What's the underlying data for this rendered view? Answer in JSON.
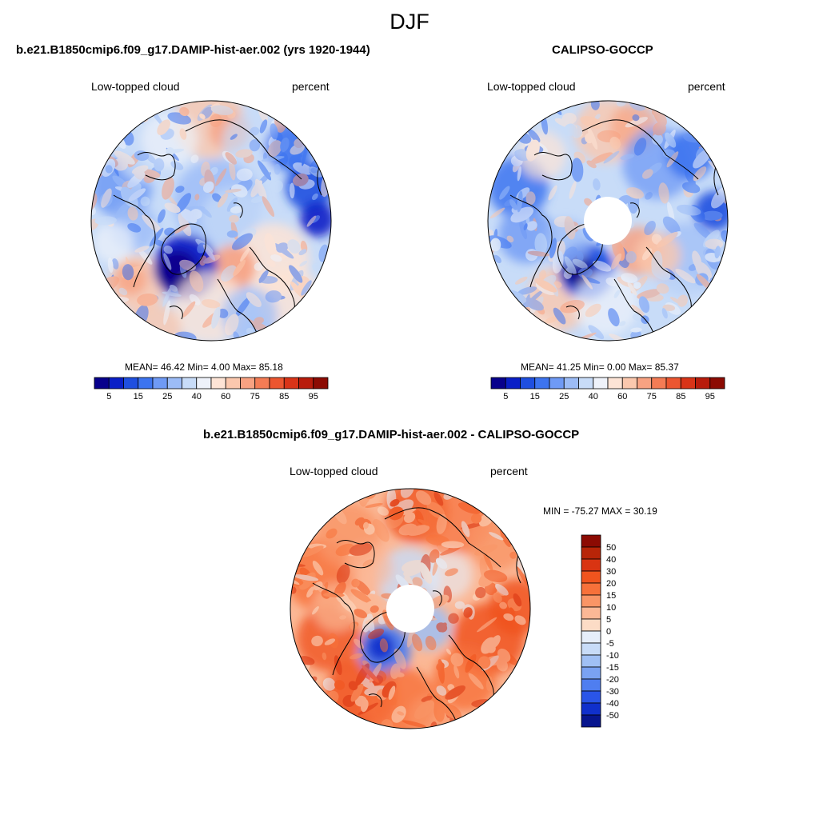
{
  "title": "DJF",
  "panels": [
    {
      "id": "model",
      "title": "b.e21.B1850cmip6.f09_g17.DAMIP-hist-aer.002 (yrs 1920-1944)",
      "left_label": "Low-topped cloud",
      "right_label": "percent",
      "stats": "MEAN=  46.42  Min=   4.00  Max=  85.18",
      "has_hole": false
    },
    {
      "id": "obs",
      "title": "CALIPSO-GOCCP",
      "left_label": "Low-topped cloud",
      "right_label": "percent",
      "stats": "MEAN=  41.25  Min=   0.00  Max=  85.37",
      "has_hole": true
    },
    {
      "id": "diff",
      "title": "b.e21.B1850cmip6.f09_g17.DAMIP-hist-aer.002 - CALIPSO-GOCCP",
      "left_label": "Low-topped cloud",
      "right_label": "percent",
      "stats": "MIN = -75.27 MAX =  30.19",
      "has_hole": true
    }
  ],
  "abs_colorbar": {
    "colors": [
      "#08008c",
      "#0a1fc7",
      "#1f4fe0",
      "#3d74f0",
      "#6f9af5",
      "#9cbcf7",
      "#c8dcf8",
      "#eef2fa",
      "#fde4d6",
      "#fbc8ae",
      "#f8a282",
      "#f47c55",
      "#ec5630",
      "#d93418",
      "#b81c0c",
      "#8c0b03"
    ],
    "tick_labels": [
      "5",
      "15",
      "25",
      "40",
      "60",
      "75",
      "85",
      "95"
    ]
  },
  "diff_colorbar": {
    "colors_top_to_bottom": [
      "#8c0b03",
      "#b82508",
      "#d93412",
      "#f0541e",
      "#f7713a",
      "#f99566",
      "#fbb896",
      "#fcdcc6",
      "#e6eefa",
      "#c8dcf8",
      "#a0c0f5",
      "#7aa2f2",
      "#4f7ef0",
      "#2a55e8",
      "#1030cc",
      "#07158e"
    ],
    "tick_labels": [
      "50",
      "40",
      "30",
      "20",
      "15",
      "10",
      "5",
      "0",
      "-5",
      "-10",
      "-15",
      "-20",
      "-30",
      "-40",
      "-50"
    ]
  }
}
